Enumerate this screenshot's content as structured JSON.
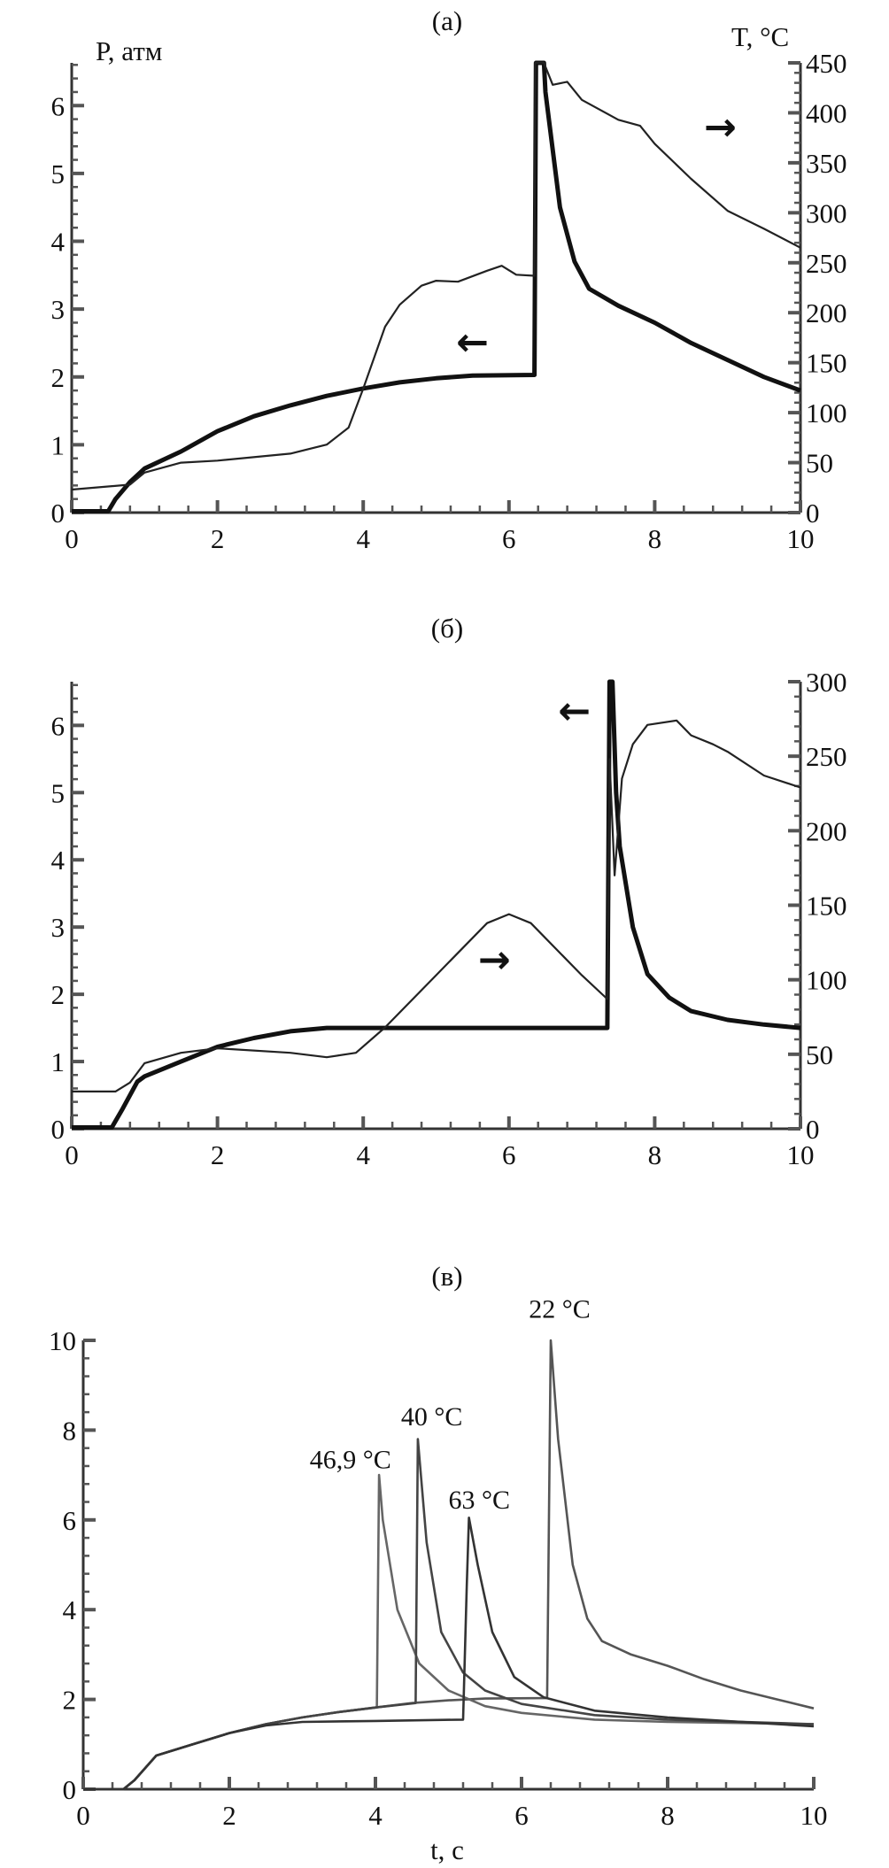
{
  "chart_data": [
    {
      "type": "line",
      "title": "(a)",
      "xlabel": "",
      "ylabel_left": "P, атм",
      "ylabel_right": "T, °C",
      "xlim": [
        0,
        10
      ],
      "ylim_left": [
        0,
        6.63
      ],
      "ylim_right": [
        0,
        450
      ],
      "x_ticks": [
        "0",
        "2",
        "4",
        "6",
        "8",
        "10"
      ],
      "y_left_ticks": [
        "0",
        "1",
        "2",
        "3",
        "4",
        "5",
        "6"
      ],
      "y_right_ticks": [
        "0",
        "50",
        "100",
        "150",
        "200",
        "250",
        "300",
        "350",
        "400",
        "450"
      ],
      "grid": false,
      "series": [
        {
          "axis": "left",
          "style": "thick",
          "color": "#111111",
          "x": [
            0,
            0.5,
            0.6,
            0.8,
            1.0,
            1.5,
            2,
            2.5,
            3,
            3.5,
            4,
            4.5,
            5,
            5.5,
            6.35,
            6.37,
            6.48,
            6.5,
            6.7,
            6.9,
            7.1,
            7.5,
            8,
            8.5,
            9,
            9.5,
            10
          ],
          "y": [
            0.02,
            0.02,
            0.2,
            0.45,
            0.65,
            0.9,
            1.2,
            1.42,
            1.58,
            1.72,
            1.83,
            1.92,
            1.98,
            2.02,
            2.03,
            6.63,
            6.63,
            6.2,
            4.5,
            3.7,
            3.3,
            3.05,
            2.8,
            2.5,
            2.25,
            2.0,
            1.8
          ]
        },
        {
          "axis": "right",
          "style": "thin",
          "color": "#222222",
          "x": [
            0,
            0.8,
            1.0,
            1.5,
            2,
            3,
            3.5,
            3.8,
            4,
            4.3,
            4.5,
            4.8,
            5,
            5.3,
            5.7,
            5.9,
            6.1,
            6.35,
            6.36,
            6.48,
            6.6,
            6.8,
            7,
            7.5,
            7.8,
            8,
            8.5,
            9,
            9.5,
            10
          ],
          "y": [
            23,
            28,
            40,
            50,
            52,
            59,
            68,
            85,
            124,
            186,
            208,
            227,
            232,
            231,
            242,
            247,
            238,
            237,
            450,
            450,
            428,
            431,
            413,
            393,
            387,
            369,
            334,
            302,
            284,
            265
          ]
        }
      ],
      "annotations": [
        {
          "text": "→",
          "x": 8.9,
          "y_right": 385
        },
        {
          "text": "←",
          "x": 5.5,
          "y_left": 2.5
        }
      ]
    },
    {
      "type": "line",
      "title": "(б)",
      "xlabel": "",
      "ylabel_left": "",
      "ylabel_right": "",
      "xlim": [
        0,
        10
      ],
      "ylim_left": [
        0,
        6.65
      ],
      "ylim_right": [
        0,
        300
      ],
      "x_ticks": [
        "0",
        "2",
        "4",
        "6",
        "8",
        "10"
      ],
      "y_left_ticks": [
        "0",
        "1",
        "2",
        "3",
        "4",
        "5",
        "6"
      ],
      "y_right_ticks": [
        "0",
        "50",
        "100",
        "150",
        "200",
        "250",
        "300"
      ],
      "grid": false,
      "series": [
        {
          "axis": "left",
          "style": "thick",
          "color": "#111111",
          "x": [
            0,
            0.55,
            0.7,
            0.9,
            1.0,
            1.5,
            2,
            2.5,
            3,
            3.5,
            7.35,
            7.38,
            7.42,
            7.47,
            7.52,
            7.7,
            7.9,
            8.2,
            8.5,
            9,
            9.5,
            10
          ],
          "y": [
            0.02,
            0.02,
            0.3,
            0.7,
            0.78,
            1.0,
            1.22,
            1.35,
            1.45,
            1.5,
            1.5,
            6.65,
            6.65,
            5.0,
            4.2,
            3.0,
            2.3,
            1.95,
            1.75,
            1.62,
            1.55,
            1.5
          ]
        },
        {
          "axis": "right",
          "style": "thin",
          "color": "#222222",
          "x": [
            0,
            0.6,
            0.8,
            1.0,
            1.5,
            2,
            3,
            3.5,
            3.9,
            4.3,
            5,
            5.7,
            6,
            6.3,
            7,
            7.35,
            7.38,
            7.45,
            7.55,
            7.7,
            7.9,
            8.3,
            8.5,
            8.8,
            9,
            9.5,
            10
          ],
          "y": [
            25,
            25,
            31,
            44,
            51,
            54,
            51,
            48,
            51,
            68,
            103,
            138,
            144,
            138,
            103,
            87,
            248,
            170,
            235,
            258,
            271,
            274,
            264,
            258,
            253,
            237,
            229
          ]
        }
      ],
      "annotations": [
        {
          "text": "←",
          "x": 6.9,
          "y_left": 6.2
        },
        {
          "text": "→",
          "x": 5.8,
          "y_left": 2.5
        }
      ]
    },
    {
      "type": "line",
      "title": "(в)",
      "xlabel": "t, c",
      "ylabel_left": "",
      "xlim": [
        0,
        10
      ],
      "ylim_left": [
        0,
        10
      ],
      "x_ticks": [
        "0",
        "2",
        "4",
        "6",
        "8",
        "10"
      ],
      "y_left_ticks": [
        "0",
        "2",
        "4",
        "6",
        "8",
        "10"
      ],
      "grid": false,
      "series": [
        {
          "name": "22 °C",
          "axis": "left",
          "style": "gray",
          "color": "#555555",
          "x": [
            0,
            0.55,
            0.7,
            1,
            1.5,
            2,
            2.5,
            3,
            3.5,
            4,
            4.5,
            5,
            5.5,
            6.35,
            6.4,
            6.5,
            6.7,
            6.9,
            7.1,
            7.5,
            8,
            8.5,
            9,
            9.5,
            10
          ],
          "y": [
            0,
            0,
            0.2,
            0.75,
            1.0,
            1.25,
            1.45,
            1.6,
            1.72,
            1.82,
            1.92,
            1.98,
            2.02,
            2.03,
            10,
            7.8,
            5.0,
            3.8,
            3.3,
            3.0,
            2.75,
            2.45,
            2.2,
            2.0,
            1.8
          ]
        },
        {
          "name": "46,9 °C",
          "axis": "left",
          "style": "gray",
          "color": "#666666",
          "x": [
            0,
            0.55,
            0.7,
            1,
            1.5,
            2,
            2.5,
            3,
            3.5,
            4.02,
            4.05,
            4.1,
            4.3,
            4.6,
            5,
            5.5,
            6,
            7,
            8,
            10
          ],
          "y": [
            0,
            0,
            0.2,
            0.75,
            1.0,
            1.25,
            1.45,
            1.6,
            1.72,
            1.82,
            7.0,
            6.0,
            4.0,
            2.8,
            2.2,
            1.85,
            1.7,
            1.55,
            1.5,
            1.45
          ]
        },
        {
          "name": "40 °C",
          "axis": "left",
          "style": "gray",
          "color": "#444444",
          "x": [
            0,
            0.55,
            0.7,
            1,
            1.5,
            2,
            2.5,
            3,
            3.5,
            4,
            4.55,
            4.58,
            4.7,
            4.9,
            5.2,
            5.5,
            6,
            7,
            8,
            10
          ],
          "y": [
            0,
            0,
            0.2,
            0.75,
            1.0,
            1.25,
            1.45,
            1.6,
            1.72,
            1.82,
            1.92,
            7.8,
            5.5,
            3.5,
            2.6,
            2.2,
            1.9,
            1.65,
            1.55,
            1.45
          ]
        },
        {
          "name": "63 °C",
          "axis": "left",
          "style": "gray",
          "color": "#333333",
          "x": [
            0,
            0.55,
            0.7,
            1,
            1.5,
            2,
            2.5,
            3,
            4,
            5.2,
            5.25,
            5.28,
            5.4,
            5.6,
            5.9,
            6.3,
            7,
            8,
            10
          ],
          "y": [
            0,
            0,
            0.2,
            0.75,
            1.0,
            1.25,
            1.42,
            1.5,
            1.52,
            1.55,
            4.5,
            6.05,
            5.0,
            3.5,
            2.5,
            2.05,
            1.75,
            1.6,
            1.4
          ]
        }
      ],
      "annotations": [
        {
          "text": "22 °C",
          "x": 6.1,
          "y_left": 10.7
        },
        {
          "text": "40 °C",
          "x": 4.35,
          "y_left": 8.3
        },
        {
          "text": "46,9 °C",
          "x": 3.1,
          "y_left": 7.35
        },
        {
          "text": "63 °C",
          "x": 5.0,
          "y_left": 6.45
        }
      ]
    }
  ]
}
